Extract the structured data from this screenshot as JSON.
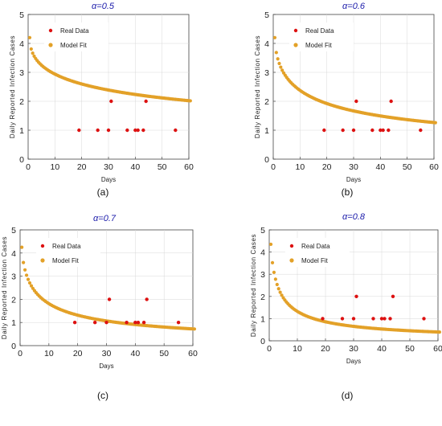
{
  "chart_data": [
    {
      "type": "scatter",
      "title": "α=0.5",
      "panel_label": "(a)",
      "xlabel": "Days",
      "ylabel": "Daily Reported Infection Cases",
      "xlim": [
        0,
        60
      ],
      "ylim": [
        0,
        5
      ],
      "xticks": [
        0,
        10,
        20,
        30,
        40,
        50,
        60
      ],
      "yticks": [
        0,
        1,
        2,
        3,
        4,
        5
      ],
      "grid": true,
      "legend": "top-left",
      "series": [
        {
          "name": "Real Data",
          "color": "#dd1111",
          "x": [
            19,
            26,
            30,
            31,
            37,
            40,
            41,
            43,
            44,
            55
          ],
          "y": [
            1,
            1,
            1,
            2,
            1,
            1,
            1,
            1,
            2,
            1
          ]
        },
        {
          "name": "Model Fit",
          "color": "#e3a128",
          "model": {
            "y0": 4.2,
            "alpha": 0.5,
            "k": 0.14,
            "days": 60
          }
        }
      ]
    },
    {
      "type": "scatter",
      "title": "α=0.6",
      "panel_label": "(b)",
      "xlabel": "Days",
      "ylabel": "Daily Reported Infection Cases",
      "xlim": [
        0,
        60
      ],
      "ylim": [
        0,
        5
      ],
      "xticks": [
        0,
        10,
        20,
        30,
        40,
        50,
        60
      ],
      "yticks": [
        0,
        1,
        2,
        3,
        4,
        5
      ],
      "grid": true,
      "legend": "top-left",
      "series": [
        {
          "name": "Real Data",
          "color": "#dd1111",
          "x": [
            19,
            26,
            30,
            31,
            37,
            40,
            41,
            43,
            44,
            55
          ],
          "y": [
            1,
            1,
            1,
            2,
            1,
            1,
            1,
            1,
            2,
            1
          ]
        },
        {
          "name": "Model Fit",
          "color": "#e3a128",
          "model": {
            "y0": 4.2,
            "alpha": 0.6,
            "k": 0.2,
            "days": 60
          }
        }
      ]
    },
    {
      "type": "scatter",
      "title": "α=0.7",
      "panel_label": "(c)",
      "xlabel": "Days",
      "ylabel": "Daily Reported Infection Cases",
      "xlim": [
        0,
        60
      ],
      "ylim": [
        0,
        5
      ],
      "xticks": [
        0,
        10,
        20,
        30,
        40,
        50,
        60
      ],
      "yticks": [
        0,
        1,
        2,
        3,
        4,
        5
      ],
      "grid": true,
      "legend": "top-left",
      "series": [
        {
          "name": "Real Data",
          "color": "#dd1111",
          "x": [
            19,
            26,
            30,
            31,
            37,
            40,
            41,
            43,
            44,
            55
          ],
          "y": [
            1,
            1,
            1,
            2,
            1,
            1,
            1,
            1,
            2,
            1
          ]
        },
        {
          "name": "Model Fit",
          "color": "#e3a128",
          "model": {
            "y0": 4.25,
            "alpha": 0.7,
            "k": 0.28,
            "days": 60
          }
        }
      ]
    },
    {
      "type": "scatter",
      "title": "α=0.8",
      "panel_label": "(d)",
      "xlabel": "Days",
      "ylabel": "Daily Reported Infection Cases",
      "xlim": [
        0,
        60
      ],
      "ylim": [
        0,
        5
      ],
      "xticks": [
        0,
        10,
        20,
        30,
        40,
        50,
        60
      ],
      "yticks": [
        0,
        1,
        2,
        3,
        4,
        5
      ],
      "grid": true,
      "legend": "top-left",
      "series": [
        {
          "name": "Real Data",
          "color": "#dd1111",
          "x": [
            19,
            26,
            30,
            31,
            37,
            40,
            41,
            43,
            44,
            55
          ],
          "y": [
            1,
            1,
            1,
            2,
            1,
            1,
            1,
            1,
            2,
            1
          ]
        },
        {
          "name": "Model Fit",
          "color": "#e3a128",
          "model": {
            "y0": 4.35,
            "alpha": 0.8,
            "k": 0.38,
            "days": 60
          }
        }
      ]
    }
  ],
  "colors": {
    "title": "#1a1aaa",
    "axis": "#444444",
    "grid": "#d8d8d8",
    "legend_bg": "#ffffff"
  }
}
